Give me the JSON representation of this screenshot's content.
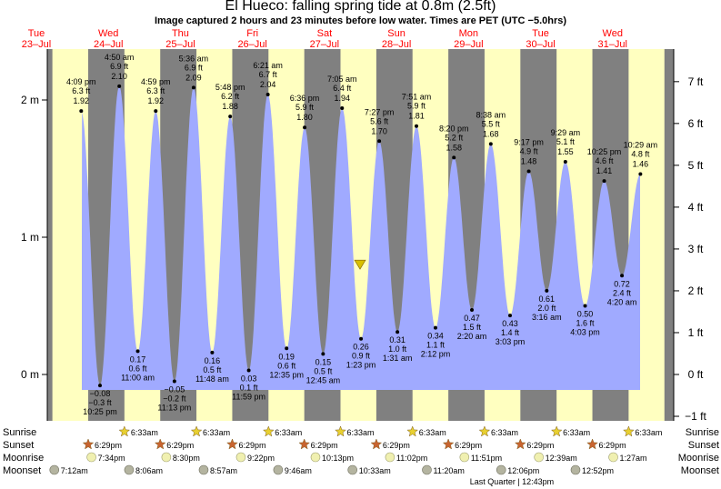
{
  "title": "El Hueco: falling  spring tide at 0.8m (2.5ft)",
  "subtitle": "Image captured 2 hours and 23 minutes before low water. Times are PET (UTC −5.0hrs)",
  "colors": {
    "day_bg": "#ffffc0",
    "night_bg": "#808080",
    "tide_fill": "#a0aaff",
    "date_label": "#ff0000",
    "sun_icon": "#e8d030",
    "sunset_icon": "#c86430",
    "moon_icon": "#f0f0b0",
    "moonset_icon": "#b4b4a0",
    "marker": "#d8c000"
  },
  "days": [
    {
      "dow": "Tue",
      "date": "23–Jul"
    },
    {
      "dow": "Wed",
      "date": "24–Jul"
    },
    {
      "dow": "Thu",
      "date": "25–Jul"
    },
    {
      "dow": "Fri",
      "date": "26–Jul"
    },
    {
      "dow": "Sat",
      "date": "27–Jul"
    },
    {
      "dow": "Sun",
      "date": "28–Jul"
    },
    {
      "dow": "Mon",
      "date": "29–Jul"
    },
    {
      "dow": "Tue",
      "date": "30–Jul"
    },
    {
      "dow": "Wed",
      "date": "31–Jul"
    }
  ],
  "row_labels": {
    "sunrise": "Sunrise",
    "sunset": "Sunset",
    "moonrise": "Moonrise",
    "moonset": "Moonset"
  },
  "sunrise": [
    "6:33am",
    "6:33am",
    "6:33am",
    "6:33am",
    "6:33am",
    "6:33am",
    "6:33am",
    "6:33am"
  ],
  "sunset": [
    "6:29pm",
    "6:29pm",
    "6:29pm",
    "6:29pm",
    "6:29pm",
    "6:29pm",
    "6:29pm",
    "6:29pm"
  ],
  "moonrise": [
    "7:34pm",
    "8:30pm",
    "9:22pm",
    "10:13pm",
    "11:02pm",
    "11:51pm",
    "12:39am",
    "1:27am"
  ],
  "moonset": [
    "7:12am",
    "8:06am",
    "8:57am",
    "9:46am",
    "10:33am",
    "11:20am",
    "12:06pm",
    "12:52pm"
  ],
  "moon_phase": "Last Quarter | 12:43pm",
  "chart_data": {
    "type": "area",
    "title": "El Hueco: falling  spring tide at 0.8m (2.5ft)",
    "y_left_unit": "m",
    "y_left_ticks": [
      "0 m",
      "1 m",
      "2 m"
    ],
    "y_right_ticks": [
      "−1 ft",
      "0 ft",
      "1 ft",
      "2 ft",
      "3 ft",
      "4 ft",
      "5 ft",
      "6 ft",
      "7 ft"
    ],
    "ylim_m": [
      -0.43,
      2.33
    ],
    "current": {
      "height_m": 0.8,
      "height_ft": 2.5
    },
    "extremes": [
      {
        "day": 0,
        "time": "4:09 pm",
        "h": "1.92",
        "m": 1.92,
        "ft": "6.3 ft",
        "type": "high"
      },
      {
        "day": 0,
        "time": "10:25 pm",
        "h": "−0.08",
        "m": -0.08,
        "ft": "−0.3 ft",
        "type": "low"
      },
      {
        "day": 1,
        "time": "4:50 am",
        "h": "2.10",
        "m": 2.1,
        "ft": "6.9 ft",
        "type": "high"
      },
      {
        "day": 1,
        "time": "11:00 am",
        "h": "0.17",
        "m": 0.17,
        "ft": "0.6 ft",
        "type": "low"
      },
      {
        "day": 1,
        "time": "4:59 pm",
        "h": "1.92",
        "m": 1.92,
        "ft": "6.3 ft",
        "type": "high"
      },
      {
        "day": 1,
        "time": "11:13 pm",
        "h": "−0.05",
        "m": -0.05,
        "ft": "−0.2 ft",
        "type": "low"
      },
      {
        "day": 2,
        "time": "5:36 am",
        "h": "2.09",
        "m": 2.09,
        "ft": "6.9 ft",
        "type": "high"
      },
      {
        "day": 2,
        "time": "11:48 am",
        "h": "0.16",
        "m": 0.16,
        "ft": "0.5 ft",
        "type": "low"
      },
      {
        "day": 2,
        "time": "5:48 pm",
        "h": "1.88",
        "m": 1.88,
        "ft": "6.2 ft",
        "type": "high"
      },
      {
        "day": 2,
        "time": "11:59 pm",
        "h": "0.03",
        "m": 0.03,
        "ft": "0.1 ft",
        "type": "low"
      },
      {
        "day": 3,
        "time": "6:21 am",
        "h": "2.04",
        "m": 2.04,
        "ft": "6.7 ft",
        "type": "high"
      },
      {
        "day": 3,
        "time": "12:35 pm",
        "h": "0.19",
        "m": 0.19,
        "ft": "0.6 ft",
        "type": "low"
      },
      {
        "day": 3,
        "time": "6:36 pm",
        "h": "1.80",
        "m": 1.8,
        "ft": "5.9 ft",
        "type": "high"
      },
      {
        "day": 4,
        "time": "12:45 am",
        "h": "0.15",
        "m": 0.15,
        "ft": "0.5 ft",
        "type": "low"
      },
      {
        "day": 4,
        "time": "7:05 am",
        "h": "1.94",
        "m": 1.94,
        "ft": "6.4 ft",
        "type": "high"
      },
      {
        "day": 4,
        "time": "1:23 pm",
        "h": "0.26",
        "m": 0.26,
        "ft": "0.9 ft",
        "type": "low"
      },
      {
        "day": 4,
        "time": "7:27 pm",
        "h": "1.70",
        "m": 1.7,
        "ft": "5.6 ft",
        "type": "high"
      },
      {
        "day": 5,
        "time": "1:31 am",
        "h": "0.31",
        "m": 0.31,
        "ft": "1.0 ft",
        "type": "low"
      },
      {
        "day": 5,
        "time": "7:51 am",
        "h": "1.81",
        "m": 1.81,
        "ft": "5.9 ft",
        "type": "high"
      },
      {
        "day": 5,
        "time": "2:12 pm",
        "h": "0.34",
        "m": 0.34,
        "ft": "1.1 ft",
        "type": "low"
      },
      {
        "day": 5,
        "time": "8:20 pm",
        "h": "1.58",
        "m": 1.58,
        "ft": "5.2 ft",
        "type": "high"
      },
      {
        "day": 6,
        "time": "2:20 am",
        "h": "0.47",
        "m": 0.47,
        "ft": "1.5 ft",
        "type": "low"
      },
      {
        "day": 6,
        "time": "8:38 am",
        "h": "1.68",
        "m": 1.68,
        "ft": "5.5 ft",
        "type": "high"
      },
      {
        "day": 6,
        "time": "3:03 pm",
        "h": "0.43",
        "m": 0.43,
        "ft": "1.4 ft",
        "type": "low"
      },
      {
        "day": 6,
        "time": "9:17 pm",
        "h": "1.48",
        "m": 1.48,
        "ft": "4.9 ft",
        "type": "high"
      },
      {
        "day": 7,
        "time": "3:16 am",
        "h": "0.61",
        "m": 0.61,
        "ft": "2.0 ft",
        "type": "low"
      },
      {
        "day": 7,
        "time": "9:29 am",
        "h": "1.55",
        "m": 1.55,
        "ft": "5.1 ft",
        "type": "high"
      },
      {
        "day": 7,
        "time": "4:03 pm",
        "h": "0.50",
        "m": 0.5,
        "ft": "1.6 ft",
        "type": "low"
      },
      {
        "day": 7,
        "time": "10:25 pm",
        "h": "1.41",
        "m": 1.41,
        "ft": "4.6 ft",
        "type": "high"
      },
      {
        "day": 8,
        "time": "4:20 am",
        "h": "0.72",
        "m": 0.72,
        "ft": "2.4 ft",
        "type": "low"
      },
      {
        "day": 8,
        "time": "10:29 am",
        "h": "1.46",
        "m": 1.46,
        "ft": "4.8 ft",
        "type": "high"
      }
    ]
  }
}
